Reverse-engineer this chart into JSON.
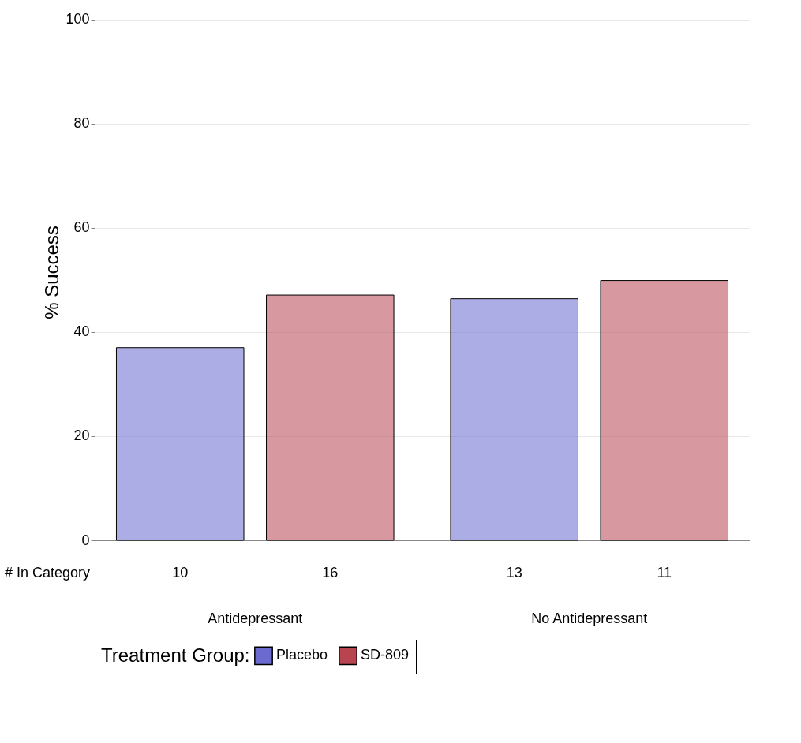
{
  "chart_data": {
    "type": "bar",
    "ylabel": "% Success",
    "legend_title": "Treatment Group:",
    "categories": [
      "Antidepressant",
      "No Antidepressant"
    ],
    "series": [
      {
        "name": "Placebo",
        "color": "#6a6ad0",
        "values": [
          37.0,
          46.4
        ]
      },
      {
        "name": "SD-809",
        "color": "#b84450",
        "values": [
          47.1,
          49.9
        ]
      }
    ],
    "ylim": [
      0,
      103
    ],
    "yticks": [
      0,
      20,
      40,
      60,
      80,
      100
    ],
    "grid": "y",
    "legend": "bottom",
    "annotations": [
      "# In Category",
      "10",
      "16",
      "13",
      "11"
    ]
  }
}
